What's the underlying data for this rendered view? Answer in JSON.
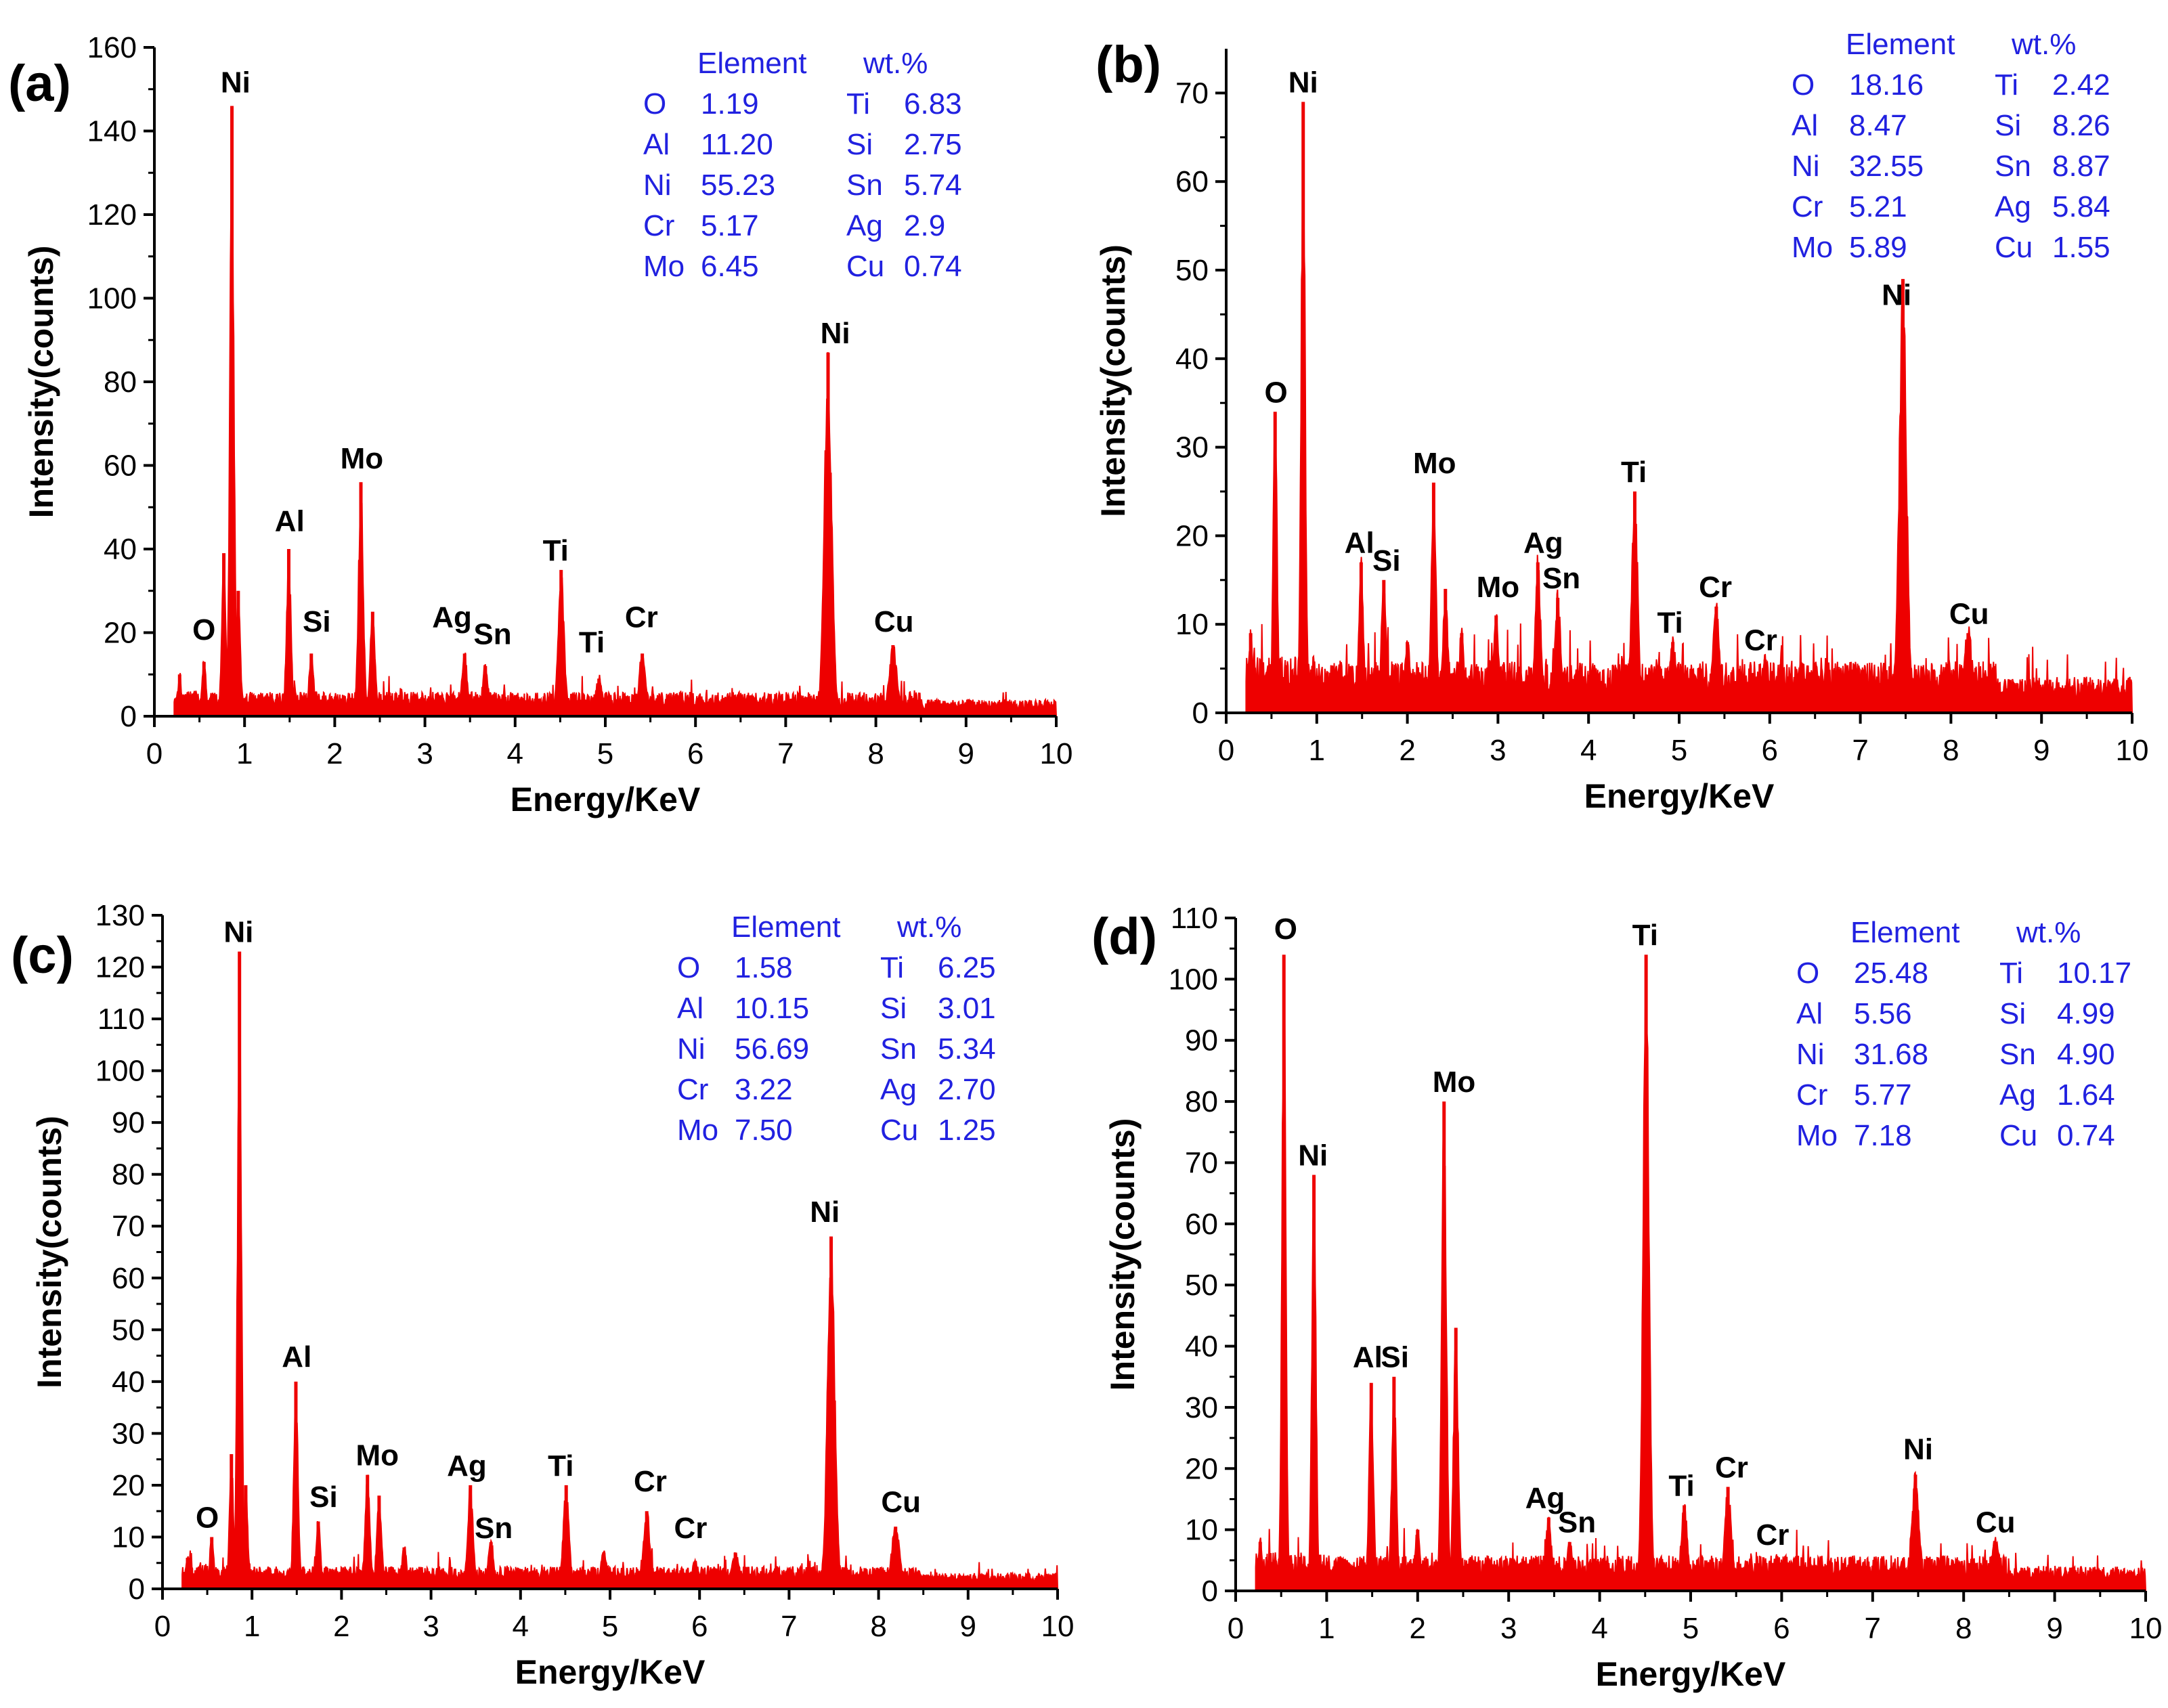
{
  "figure": {
    "panels": [
      "(a)",
      "(b)",
      "(c)",
      "(d)"
    ]
  },
  "colors": {
    "spectrum": "#ee0000",
    "table_text": "#2121e0",
    "axis": "#000000"
  },
  "chart_data": [
    {
      "panel": "(a)",
      "type": "area",
      "title": "",
      "xlabel": "Energy/KeV",
      "ylabel": "Intensity(counts)",
      "xlim": [
        0,
        10
      ],
      "ylim": [
        0,
        160
      ],
      "xticks": [
        0,
        1,
        2,
        3,
        4,
        5,
        6,
        7,
        8,
        9,
        10
      ],
      "yticks": [
        0,
        20,
        40,
        60,
        80,
        100,
        120,
        140,
        160
      ],
      "baseline": 4,
      "peaks": [
        {
          "x": 0.28,
          "h": 10
        },
        {
          "x": 0.55,
          "h": 13
        },
        {
          "x": 0.77,
          "h": 39
        },
        {
          "x": 0.86,
          "h": 146
        },
        {
          "x": 0.93,
          "h": 30
        },
        {
          "x": 1.49,
          "h": 40
        },
        {
          "x": 1.74,
          "h": 15
        },
        {
          "x": 2.29,
          "h": 56
        },
        {
          "x": 2.42,
          "h": 25
        },
        {
          "x": 3.44,
          "h": 15
        },
        {
          "x": 3.67,
          "h": 12
        },
        {
          "x": 4.51,
          "h": 35
        },
        {
          "x": 4.93,
          "h": 9
        },
        {
          "x": 5.41,
          "h": 15
        },
        {
          "x": 7.47,
          "h": 87
        },
        {
          "x": 8.19,
          "h": 17
        }
      ],
      "peak_labels": [
        {
          "text": "Ni",
          "x": 0.9,
          "y": 147
        },
        {
          "text": "O",
          "x": 0.55,
          "y": 16
        },
        {
          "text": "Al",
          "x": 1.5,
          "y": 42
        },
        {
          "text": "Si",
          "x": 1.8,
          "y": 18
        },
        {
          "text": "Mo",
          "x": 2.3,
          "y": 57
        },
        {
          "text": "Ag",
          "x": 3.3,
          "y": 19
        },
        {
          "text": "Sn",
          "x": 3.75,
          "y": 15
        },
        {
          "text": "Ti",
          "x": 4.45,
          "y": 35
        },
        {
          "text": "Ti",
          "x": 4.85,
          "y": 13
        },
        {
          "text": "Cr",
          "x": 5.4,
          "y": 19
        },
        {
          "text": "Ni",
          "x": 7.55,
          "y": 87
        },
        {
          "text": "Cu",
          "x": 8.2,
          "y": 18
        }
      ],
      "table": {
        "header": [
          "Element",
          "wt.%"
        ],
        "rows": [
          [
            "O",
            "1.19",
            "Ti",
            "6.83"
          ],
          [
            "Al",
            "11.20",
            "Si",
            "2.75"
          ],
          [
            "Ni",
            "55.23",
            "Sn",
            "5.74"
          ],
          [
            "Cr",
            "5.17",
            "Ag",
            "2.9"
          ],
          [
            "Mo",
            "6.45",
            "Cu",
            "0.74"
          ]
        ]
      }
    },
    {
      "panel": "(b)",
      "type": "area",
      "title": "",
      "xlabel": "Energy/KeV",
      "ylabel": "Intensity(counts)",
      "xlim": [
        0,
        10
      ],
      "ylim": [
        0,
        75
      ],
      "xticks": [
        0,
        1,
        2,
        3,
        4,
        5,
        6,
        7,
        8,
        9,
        10
      ],
      "yticks": [
        0,
        10,
        20,
        30,
        40,
        50,
        60,
        70
      ],
      "baseline": 4,
      "peaks": [
        {
          "x": 0.27,
          "h": 9
        },
        {
          "x": 0.54,
          "h": 34
        },
        {
          "x": 0.85,
          "h": 69
        },
        {
          "x": 1.49,
          "h": 17
        },
        {
          "x": 1.74,
          "h": 15
        },
        {
          "x": 2.0,
          "h": 8
        },
        {
          "x": 2.29,
          "h": 26
        },
        {
          "x": 2.42,
          "h": 14
        },
        {
          "x": 2.6,
          "h": 9
        },
        {
          "x": 2.98,
          "h": 11
        },
        {
          "x": 3.44,
          "h": 17
        },
        {
          "x": 3.66,
          "h": 13
        },
        {
          "x": 4.51,
          "h": 25
        },
        {
          "x": 4.93,
          "h": 8
        },
        {
          "x": 5.41,
          "h": 12
        },
        {
          "x": 5.95,
          "h": 6
        },
        {
          "x": 6.35,
          "h": 5
        },
        {
          "x": 7.47,
          "h": 49
        },
        {
          "x": 8.19,
          "h": 9
        }
      ],
      "peak_labels": [
        {
          "text": "Ni",
          "x": 0.85,
          "y": 69
        },
        {
          "text": "O",
          "x": 0.55,
          "y": 34
        },
        {
          "text": "Al",
          "x": 1.47,
          "y": 17
        },
        {
          "text": "Si",
          "x": 1.77,
          "y": 15
        },
        {
          "text": "Mo",
          "x": 2.3,
          "y": 26
        },
        {
          "text": "Mo",
          "x": 3.0,
          "y": 12
        },
        {
          "text": "Ag",
          "x": 3.5,
          "y": 17
        },
        {
          "text": "Sn",
          "x": 3.7,
          "y": 13
        },
        {
          "text": "Ti",
          "x": 4.5,
          "y": 25
        },
        {
          "text": "Ti",
          "x": 4.9,
          "y": 8
        },
        {
          "text": "Cr",
          "x": 5.4,
          "y": 12
        },
        {
          "text": "Cr",
          "x": 5.9,
          "y": 6
        },
        {
          "text": "Ni",
          "x": 7.4,
          "y": 45
        },
        {
          "text": "Cu",
          "x": 8.2,
          "y": 9
        }
      ],
      "table": {
        "header": [
          "Element",
          "wt.%"
        ],
        "rows": [
          [
            "O",
            "18.16",
            "Ti",
            "2.42"
          ],
          [
            "Al",
            "8.47",
            "Si",
            "8.26"
          ],
          [
            "Ni",
            "32.55",
            "Sn",
            "8.87"
          ],
          [
            "Cr",
            "5.21",
            "Ag",
            "5.84"
          ],
          [
            "Mo",
            "5.89",
            "Cu",
            "1.55"
          ]
        ]
      }
    },
    {
      "panel": "(c)",
      "type": "area",
      "title": "",
      "xlabel": "Energy/KeV",
      "ylabel": "Intensity(counts)",
      "xlim": [
        0,
        10
      ],
      "ylim": [
        0,
        130
      ],
      "xticks": [
        0,
        1,
        2,
        3,
        4,
        5,
        6,
        7,
        8,
        9,
        10
      ],
      "yticks": [
        0,
        10,
        20,
        30,
        40,
        50,
        60,
        70,
        80,
        90,
        100,
        110,
        120,
        130
      ],
      "baseline": 3,
      "peaks": [
        {
          "x": 0.28,
          "h": 6
        },
        {
          "x": 0.55,
          "h": 10
        },
        {
          "x": 0.77,
          "h": 26
        },
        {
          "x": 0.86,
          "h": 123
        },
        {
          "x": 0.93,
          "h": 20
        },
        {
          "x": 1.49,
          "h": 40
        },
        {
          "x": 1.74,
          "h": 13
        },
        {
          "x": 2.29,
          "h": 22
        },
        {
          "x": 2.42,
          "h": 18
        },
        {
          "x": 2.7,
          "h": 8
        },
        {
          "x": 3.44,
          "h": 20
        },
        {
          "x": 3.67,
          "h": 9
        },
        {
          "x": 4.51,
          "h": 20
        },
        {
          "x": 4.93,
          "h": 7
        },
        {
          "x": 5.41,
          "h": 15
        },
        {
          "x": 5.95,
          "h": 5
        },
        {
          "x": 6.4,
          "h": 7
        },
        {
          "x": 7.47,
          "h": 68
        },
        {
          "x": 8.19,
          "h": 12
        }
      ],
      "peak_labels": [
        {
          "text": "Ni",
          "x": 0.85,
          "y": 123
        },
        {
          "text": "O",
          "x": 0.5,
          "y": 10
        },
        {
          "text": "Al",
          "x": 1.5,
          "y": 41
        },
        {
          "text": "Si",
          "x": 1.8,
          "y": 14
        },
        {
          "text": "Mo",
          "x": 2.4,
          "y": 22
        },
        {
          "text": "Ag",
          "x": 3.4,
          "y": 20
        },
        {
          "text": "Sn",
          "x": 3.7,
          "y": 8
        },
        {
          "text": "Ti",
          "x": 4.45,
          "y": 20
        },
        {
          "text": "Cr",
          "x": 5.45,
          "y": 17
        },
        {
          "text": "Cr",
          "x": 5.9,
          "y": 8
        },
        {
          "text": "Ni",
          "x": 7.4,
          "y": 69
        },
        {
          "text": "Cu",
          "x": 8.25,
          "y": 13
        }
      ],
      "table": {
        "header": [
          "Element",
          "wt.%"
        ],
        "rows": [
          [
            "O",
            "1.58",
            "Ti",
            "6.25"
          ],
          [
            "Al",
            "10.15",
            "Si",
            "3.01"
          ],
          [
            "Ni",
            "56.69",
            "Sn",
            "5.34"
          ],
          [
            "Cr",
            "3.22",
            "Ag",
            "2.70"
          ],
          [
            "Mo",
            "7.50",
            "Cu",
            "1.25"
          ]
        ]
      }
    },
    {
      "panel": "(d)",
      "type": "area",
      "title": "",
      "xlabel": "Energy/KeV",
      "ylabel": "Intensity(counts)",
      "xlim": [
        0,
        10
      ],
      "ylim": [
        0,
        110
      ],
      "xticks": [
        0,
        1,
        2,
        3,
        4,
        5,
        6,
        7,
        8,
        9,
        10
      ],
      "yticks": [
        0,
        10,
        20,
        30,
        40,
        50,
        60,
        70,
        80,
        90,
        100,
        110
      ],
      "baseline": 4,
      "peaks": [
        {
          "x": 0.27,
          "h": 8
        },
        {
          "x": 0.53,
          "h": 104
        },
        {
          "x": 0.86,
          "h": 68
        },
        {
          "x": 1.49,
          "h": 34
        },
        {
          "x": 1.74,
          "h": 35
        },
        {
          "x": 2.0,
          "h": 10
        },
        {
          "x": 2.29,
          "h": 80
        },
        {
          "x": 2.42,
          "h": 43
        },
        {
          "x": 3.44,
          "h": 12
        },
        {
          "x": 3.67,
          "h": 8
        },
        {
          "x": 4.51,
          "h": 104
        },
        {
          "x": 4.93,
          "h": 14
        },
        {
          "x": 5.41,
          "h": 17
        },
        {
          "x": 5.95,
          "h": 5
        },
        {
          "x": 7.47,
          "h": 19
        },
        {
          "x": 8.35,
          "h": 8
        }
      ],
      "peak_labels": [
        {
          "text": "O",
          "x": 0.55,
          "y": 105
        },
        {
          "text": "Ni",
          "x": 0.85,
          "y": 68
        },
        {
          "text": "Al",
          "x": 1.45,
          "y": 35
        },
        {
          "text": "Si",
          "x": 1.75,
          "y": 35
        },
        {
          "text": "Mo",
          "x": 2.4,
          "y": 80
        },
        {
          "text": "Ag",
          "x": 3.4,
          "y": 12
        },
        {
          "text": "Sn",
          "x": 3.75,
          "y": 8
        },
        {
          "text": "Ti",
          "x": 4.5,
          "y": 104
        },
        {
          "text": "Ti",
          "x": 4.9,
          "y": 14
        },
        {
          "text": "Cr",
          "x": 5.45,
          "y": 17
        },
        {
          "text": "Cr",
          "x": 5.9,
          "y": 6
        },
        {
          "text": "Ni",
          "x": 7.5,
          "y": 20
        },
        {
          "text": "Cu",
          "x": 8.35,
          "y": 8
        }
      ],
      "table": {
        "header": [
          "Element",
          "wt.%"
        ],
        "rows": [
          [
            "O",
            "25.48",
            "Ti",
            "10.17"
          ],
          [
            "Al",
            "5.56",
            "Si",
            "4.99"
          ],
          [
            "Ni",
            "31.68",
            "Sn",
            "4.90"
          ],
          [
            "Cr",
            "5.77",
            "Ag",
            "1.64"
          ],
          [
            "Mo",
            "7.18",
            "Cu",
            "0.74"
          ]
        ]
      }
    }
  ]
}
